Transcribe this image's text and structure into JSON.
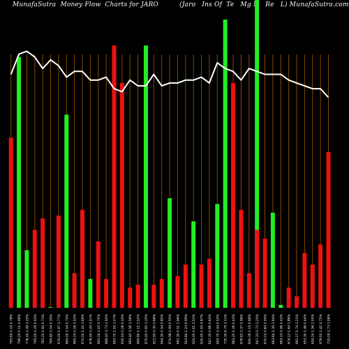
{
  "header": {
    "left_title": "MunafaSutra  Money Flow  Charts for JARO",
    "right_title": "(Jaro   Ins Of  Te   Mg N   Re   L) MunafaSutra.com"
  },
  "colors": {
    "background": "#000000",
    "up_bar": "#22ee22",
    "down_bar": "#ee1111",
    "price_line": "#ffffff",
    "gridline": "#8b4a00",
    "highlight_bar": "#22ee22"
  },
  "chart_data": {
    "type": "bar",
    "title": "",
    "xlabel": "",
    "ylabel": "",
    "ylim": [
      0,
      100
    ],
    "grid": true,
    "highlight_index": 31,
    "series": [
      {
        "values": [
          59,
          87,
          20,
          27,
          31,
          0,
          32,
          67,
          12,
          34,
          10,
          23,
          10,
          91,
          78,
          7,
          8,
          91,
          8,
          10,
          38,
          11,
          15,
          30,
          15,
          17,
          36,
          100,
          78,
          34,
          12,
          27,
          24,
          33,
          1,
          7,
          4,
          19,
          15,
          22,
          54
        ],
        "colors": [
          "r",
          "g",
          "g",
          "r",
          "r",
          "g",
          "r",
          "g",
          "r",
          "r",
          "g",
          "r",
          "r",
          "r",
          "r",
          "r",
          "r",
          "g",
          "r",
          "r",
          "g",
          "r",
          "r",
          "g",
          "r",
          "r",
          "g",
          "g",
          "r",
          "r",
          "r",
          "r",
          "r",
          "g",
          "g",
          "r",
          "r",
          "r",
          "r",
          "r",
          "r"
        ]
      },
      {
        "type": "line",
        "values": [
          81,
          88,
          89,
          87,
          83,
          86,
          84,
          80,
          82,
          82,
          79,
          79,
          80,
          76,
          75,
          79,
          77,
          77,
          81,
          77,
          78,
          78,
          79,
          79,
          80,
          78,
          85,
          83,
          82,
          79,
          83,
          82,
          81,
          81,
          81,
          79,
          78,
          77,
          76,
          76,
          73
        ]
      }
    ],
    "x_tick_labels": [
      "795.65 0.19 0.78%",
      "796.20 0.11 0.98%",
      "778.45 2.49 3.25%",
      "795.45 0.29 0.93%",
      "763.25 1.94 0.71%",
      "794.60 0.54 0.35%",
      "679.00 1.97 1.77%",
      "665.00 2.54 0.75%",
      "665.25 0.16 1.53%",
      "674.00 1.10 1.69%",
      "678.90 0.44 1.97%",
      "692.00 2.05 0.70%",
      "686.40 3.73 1.90%",
      "693.70 1.00 1.07%",
      "639.10 0.26 0.19%",
      "663.40 3.56 1.56%",
      "699.80 1.11 1.52%",
      "675.00 0.95 1.35%",
      "621.90 0.30 0.66%",
      "644.30 0.54 0.80%",
      "674.98 1.99 0.55%",
      "681.30 0.51 1.96%",
      "643.84 1.24 0.99%",
      "624.00 1.61 1.51%",
      "635.00 1.00 0.87%",
      "647.30 0.86 0.62%",
      "655.70 2.44 0.53%",
      "739.30 6.79 1.11%",
      "661.20 1.26 0.43%",
      "678.81 0.37 0.96%",
      "600.39 1.15 0.68%",
      "647.33 0.72 1.25%",
      "670.01 0.64 0.95%",
      "663.64 1.30 2.84%",
      "663.23 0.96 0.42%",
      "674.13 1.64 1.88%",
      "691.17 1.74 1.21%",
      "653.30 1.46 0.44%",
      "659.24 1.56 2.00%",
      "678.91 1.42 0.75%",
      "715.09 2.73 1.08%"
    ]
  }
}
